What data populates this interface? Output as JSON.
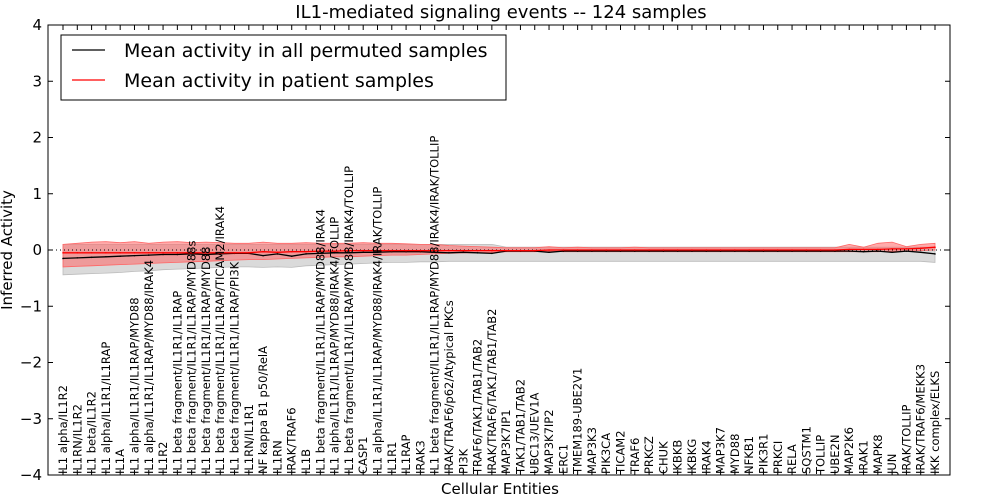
{
  "chart_data": {
    "type": "line",
    "title": "IL1-mediated signaling events -- 124 samples",
    "xlabel": "Cellular Entities",
    "ylabel": "Inferred Activity",
    "ylim": [
      -4,
      4
    ],
    "yticks": [
      -4,
      -3,
      -2,
      -1,
      0,
      1,
      2,
      3,
      4
    ],
    "legend_position": "top-left",
    "colors": {
      "permuted": "#000000",
      "patient": "#ff0000",
      "permuted_band": "#bbbbbb",
      "patient_band": "#ff6666"
    },
    "categories": [
      "IL1 alpha/IL1R2",
      "IL1RN/IL1R2",
      "IL1 beta/IL1R2",
      "IL1 alpha/IL1R1/IL1RAP",
      "IL1A",
      "IL1 alpha/IL1R1/IL1RAP/MYD88",
      "IL1 alpha/IL1R1/IL1RAP/MYD88/IRAK4",
      "IL1R2",
      "IL1 beta fragment/IL1R1/IL1RAP",
      "IL1 beta fragment/IL1R1/IL1RAP/MYD88s",
      "IL1 beta fragment/IL1R1/IL1RAP/MYD88",
      "IL1 beta fragment/IL1R1/IL1RAP/TICAM2/IRAK4",
      "IL1 beta fragment/IL1R1/IL1RAP/PI3K",
      "IL1RN/IL1R1",
      "NF kappa B1 p50/RelA",
      "IL1RN",
      "IRAK/TRAF6",
      "IL1B",
      "IL1 beta fragment/IL1R1/IL1RAP/MYD88/IRAK4",
      "IL1 alpha/IL1R1/IL1RAP/MYD88/IRAK4/TOLLIP",
      "IL1 beta fragment/IL1R1/IL1RAP/MYD88/IRAK4/TOLLIP",
      "CASP1",
      "IL1 alpha/IL1R1/IL1RAP/MYD88/IRAK4/IRAK/TOLLIP",
      "IL1R1",
      "IL1RAP",
      "IRAK3",
      "IL1 beta fragment/IL1R1/IL1RAP/MYD88/IRAK4/IRAK/TOLLIP",
      "IRAK/TRAF6/p62/Atypical PKCs",
      "PI3K",
      "TRAF6/TAK1/TAB1/TAB2",
      "IRAK/TRAF6/TAK1/TAB1/TAB2",
      "MAP3K7IP1",
      "TAK1/TAB1/TAB2",
      "UBC13/UEV1A",
      "MAP3K7IP2",
      "ERC1",
      "TMEM189-UBE2V1",
      "MAP3K3",
      "PIK3CA",
      "TICAM2",
      "TRAF6",
      "PRKCZ",
      "CHUK",
      "IKBKB",
      "IKBKG",
      "IRAK4",
      "MAP3K7",
      "MYD88",
      "NFKB1",
      "PIK3R1",
      "PRKCI",
      "RELA",
      "SQSTM1",
      "TOLLIP",
      "UBE2N",
      "MAP2K6",
      "IRAK1",
      "MAPK8",
      "JUN",
      "IRAK/TOLLIP",
      "IRAK/TRAF6/MEKK3",
      "IKK complex/ELKS"
    ],
    "series": [
      {
        "name": "Mean activity in all permuted samples",
        "values": [
          -0.15,
          -0.14,
          -0.13,
          -0.12,
          -0.11,
          -0.1,
          -0.09,
          -0.08,
          -0.08,
          -0.07,
          -0.08,
          -0.07,
          -0.06,
          -0.06,
          -0.1,
          -0.07,
          -0.11,
          -0.07,
          -0.06,
          -0.05,
          -0.05,
          -0.04,
          -0.04,
          -0.03,
          -0.03,
          -0.03,
          -0.04,
          -0.05,
          -0.04,
          -0.05,
          -0.06,
          -0.02,
          -0.02,
          -0.02,
          -0.04,
          -0.02,
          -0.02,
          -0.02,
          -0.02,
          -0.02,
          -0.02,
          -0.02,
          -0.02,
          -0.02,
          -0.02,
          -0.02,
          -0.02,
          -0.02,
          -0.02,
          -0.02,
          -0.02,
          -0.02,
          -0.02,
          -0.02,
          -0.02,
          -0.02,
          -0.03,
          -0.02,
          -0.04,
          -0.02,
          -0.04,
          -0.07
        ],
        "lower": [
          -0.44,
          -0.43,
          -0.42,
          -0.41,
          -0.4,
          -0.38,
          -0.37,
          -0.35,
          -0.34,
          -0.33,
          -0.32,
          -0.31,
          -0.3,
          -0.3,
          -0.31,
          -0.3,
          -0.31,
          -0.28,
          -0.27,
          -0.26,
          -0.25,
          -0.24,
          -0.23,
          -0.22,
          -0.22,
          -0.21,
          -0.21,
          -0.2,
          -0.2,
          -0.2,
          -0.2,
          -0.2,
          -0.2,
          -0.2,
          -0.2,
          -0.2,
          -0.2,
          -0.2,
          -0.2,
          -0.2,
          -0.2,
          -0.2,
          -0.2,
          -0.2,
          -0.2,
          -0.2,
          -0.2,
          -0.2,
          -0.2,
          -0.2,
          -0.2,
          -0.2,
          -0.2,
          -0.2,
          -0.2,
          -0.2,
          -0.2,
          -0.2,
          -0.2,
          -0.2,
          -0.2,
          -0.22
        ],
        "upper": [
          0.1,
          0.1,
          0.1,
          0.1,
          0.1,
          0.1,
          0.1,
          0.1,
          0.1,
          0.1,
          0.1,
          0.1,
          0.1,
          0.1,
          0.1,
          0.1,
          0.1,
          0.1,
          0.1,
          0.1,
          0.1,
          0.1,
          0.1,
          0.1,
          0.1,
          0.1,
          0.1,
          0.1,
          0.1,
          0.1,
          0.1,
          0.05,
          0.05,
          0.05,
          0.05,
          0.05,
          0.05,
          0.05,
          0.05,
          0.05,
          0.05,
          0.05,
          0.05,
          0.05,
          0.05,
          0.05,
          0.05,
          0.05,
          0.05,
          0.05,
          0.05,
          0.05,
          0.05,
          0.05,
          0.05,
          0.05,
          0.05,
          0.05,
          0.05,
          0.05,
          0.05,
          0.05
        ]
      },
      {
        "name": "Mean activity in patient samples",
        "values": [
          -0.05,
          -0.05,
          -0.05,
          -0.05,
          -0.05,
          -0.05,
          -0.05,
          -0.05,
          -0.05,
          -0.05,
          -0.05,
          -0.05,
          -0.05,
          -0.05,
          -0.03,
          -0.04,
          -0.03,
          -0.03,
          -0.02,
          -0.02,
          -0.01,
          -0.01,
          -0.01,
          -0.01,
          -0.01,
          -0.01,
          -0.01,
          -0.01,
          -0.01,
          -0.01,
          -0.01,
          -0.01,
          -0.01,
          -0.01,
          0.0,
          0.0,
          0.0,
          0.0,
          0.0,
          0.0,
          0.0,
          0.0,
          0.0,
          0.0,
          0.0,
          0.0,
          0.0,
          0.0,
          0.0,
          0.0,
          0.0,
          0.0,
          0.0,
          0.0,
          0.0,
          0.01,
          0.01,
          0.01,
          0.02,
          0.02,
          0.03,
          0.05
        ],
        "lower": [
          -0.3,
          -0.29,
          -0.28,
          -0.27,
          -0.26,
          -0.25,
          -0.24,
          -0.23,
          -0.22,
          -0.21,
          -0.2,
          -0.19,
          -0.18,
          -0.17,
          -0.17,
          -0.16,
          -0.15,
          -0.14,
          -0.13,
          -0.12,
          -0.12,
          -0.11,
          -0.1,
          -0.09,
          -0.09,
          -0.08,
          -0.07,
          -0.06,
          -0.05,
          -0.05,
          -0.04,
          -0.03,
          -0.03,
          -0.03,
          -0.02,
          -0.03,
          -0.03,
          -0.03,
          -0.03,
          -0.03,
          -0.03,
          -0.03,
          -0.03,
          -0.03,
          -0.03,
          -0.03,
          -0.03,
          -0.03,
          -0.03,
          -0.03,
          -0.03,
          -0.03,
          -0.03,
          -0.03,
          -0.03,
          -0.03,
          -0.03,
          -0.03,
          -0.02,
          -0.02,
          -0.01,
          0.0
        ],
        "upper": [
          0.1,
          0.12,
          0.14,
          0.15,
          0.13,
          0.15,
          0.12,
          0.14,
          0.15,
          0.13,
          0.14,
          0.13,
          0.12,
          0.12,
          0.14,
          0.12,
          0.12,
          0.13,
          0.12,
          0.12,
          0.12,
          0.13,
          0.12,
          0.12,
          0.11,
          0.1,
          0.1,
          0.08,
          0.07,
          0.06,
          0.05,
          0.04,
          0.04,
          0.04,
          0.06,
          0.04,
          0.05,
          0.04,
          0.04,
          0.04,
          0.05,
          0.04,
          0.04,
          0.04,
          0.04,
          0.04,
          0.04,
          0.04,
          0.04,
          0.04,
          0.04,
          0.04,
          0.04,
          0.04,
          0.04,
          0.1,
          0.05,
          0.12,
          0.14,
          0.06,
          0.1,
          0.12
        ]
      }
    ]
  }
}
